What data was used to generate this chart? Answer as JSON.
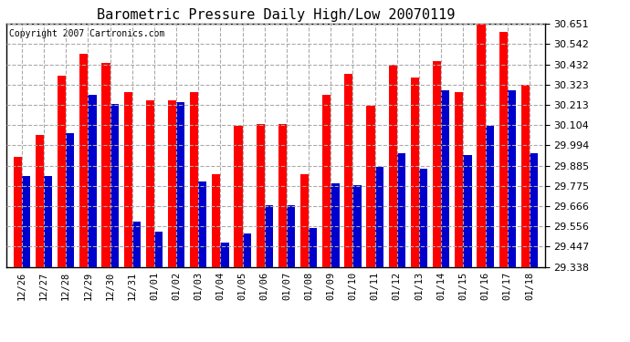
{
  "title": "Barometric Pressure Daily High/Low 20070119",
  "copyright": "Copyright 2007 Cartronics.com",
  "dates": [
    "12/26",
    "12/27",
    "12/28",
    "12/29",
    "12/30",
    "12/31",
    "01/01",
    "01/02",
    "01/03",
    "01/04",
    "01/05",
    "01/06",
    "01/07",
    "01/08",
    "01/09",
    "01/10",
    "01/11",
    "01/12",
    "01/13",
    "01/14",
    "01/15",
    "01/16",
    "01/17",
    "01/18"
  ],
  "highs": [
    29.93,
    30.05,
    30.37,
    30.49,
    30.44,
    30.28,
    30.24,
    30.24,
    30.28,
    29.84,
    30.1,
    30.11,
    30.11,
    29.84,
    30.27,
    30.38,
    30.21,
    30.43,
    30.36,
    30.45,
    30.28,
    30.65,
    30.61,
    30.32
  ],
  "lows": [
    29.83,
    29.83,
    30.06,
    30.27,
    30.22,
    29.58,
    29.53,
    30.23,
    29.8,
    29.47,
    29.52,
    29.67,
    29.67,
    29.55,
    29.79,
    29.78,
    29.88,
    29.95,
    29.87,
    30.29,
    29.94,
    30.1,
    30.29,
    29.95
  ],
  "ymin": 29.338,
  "ymax": 30.651,
  "yticks": [
    29.338,
    29.447,
    29.556,
    29.666,
    29.775,
    29.885,
    29.994,
    30.104,
    30.213,
    30.323,
    30.432,
    30.542,
    30.651
  ],
  "bar_width": 0.38,
  "high_color": "#ff0000",
  "low_color": "#0000cc",
  "bg_color": "#ffffff",
  "plot_bg_color": "#ffffff",
  "grid_color": "#aaaaaa",
  "title_fontsize": 11,
  "copyright_fontsize": 7
}
